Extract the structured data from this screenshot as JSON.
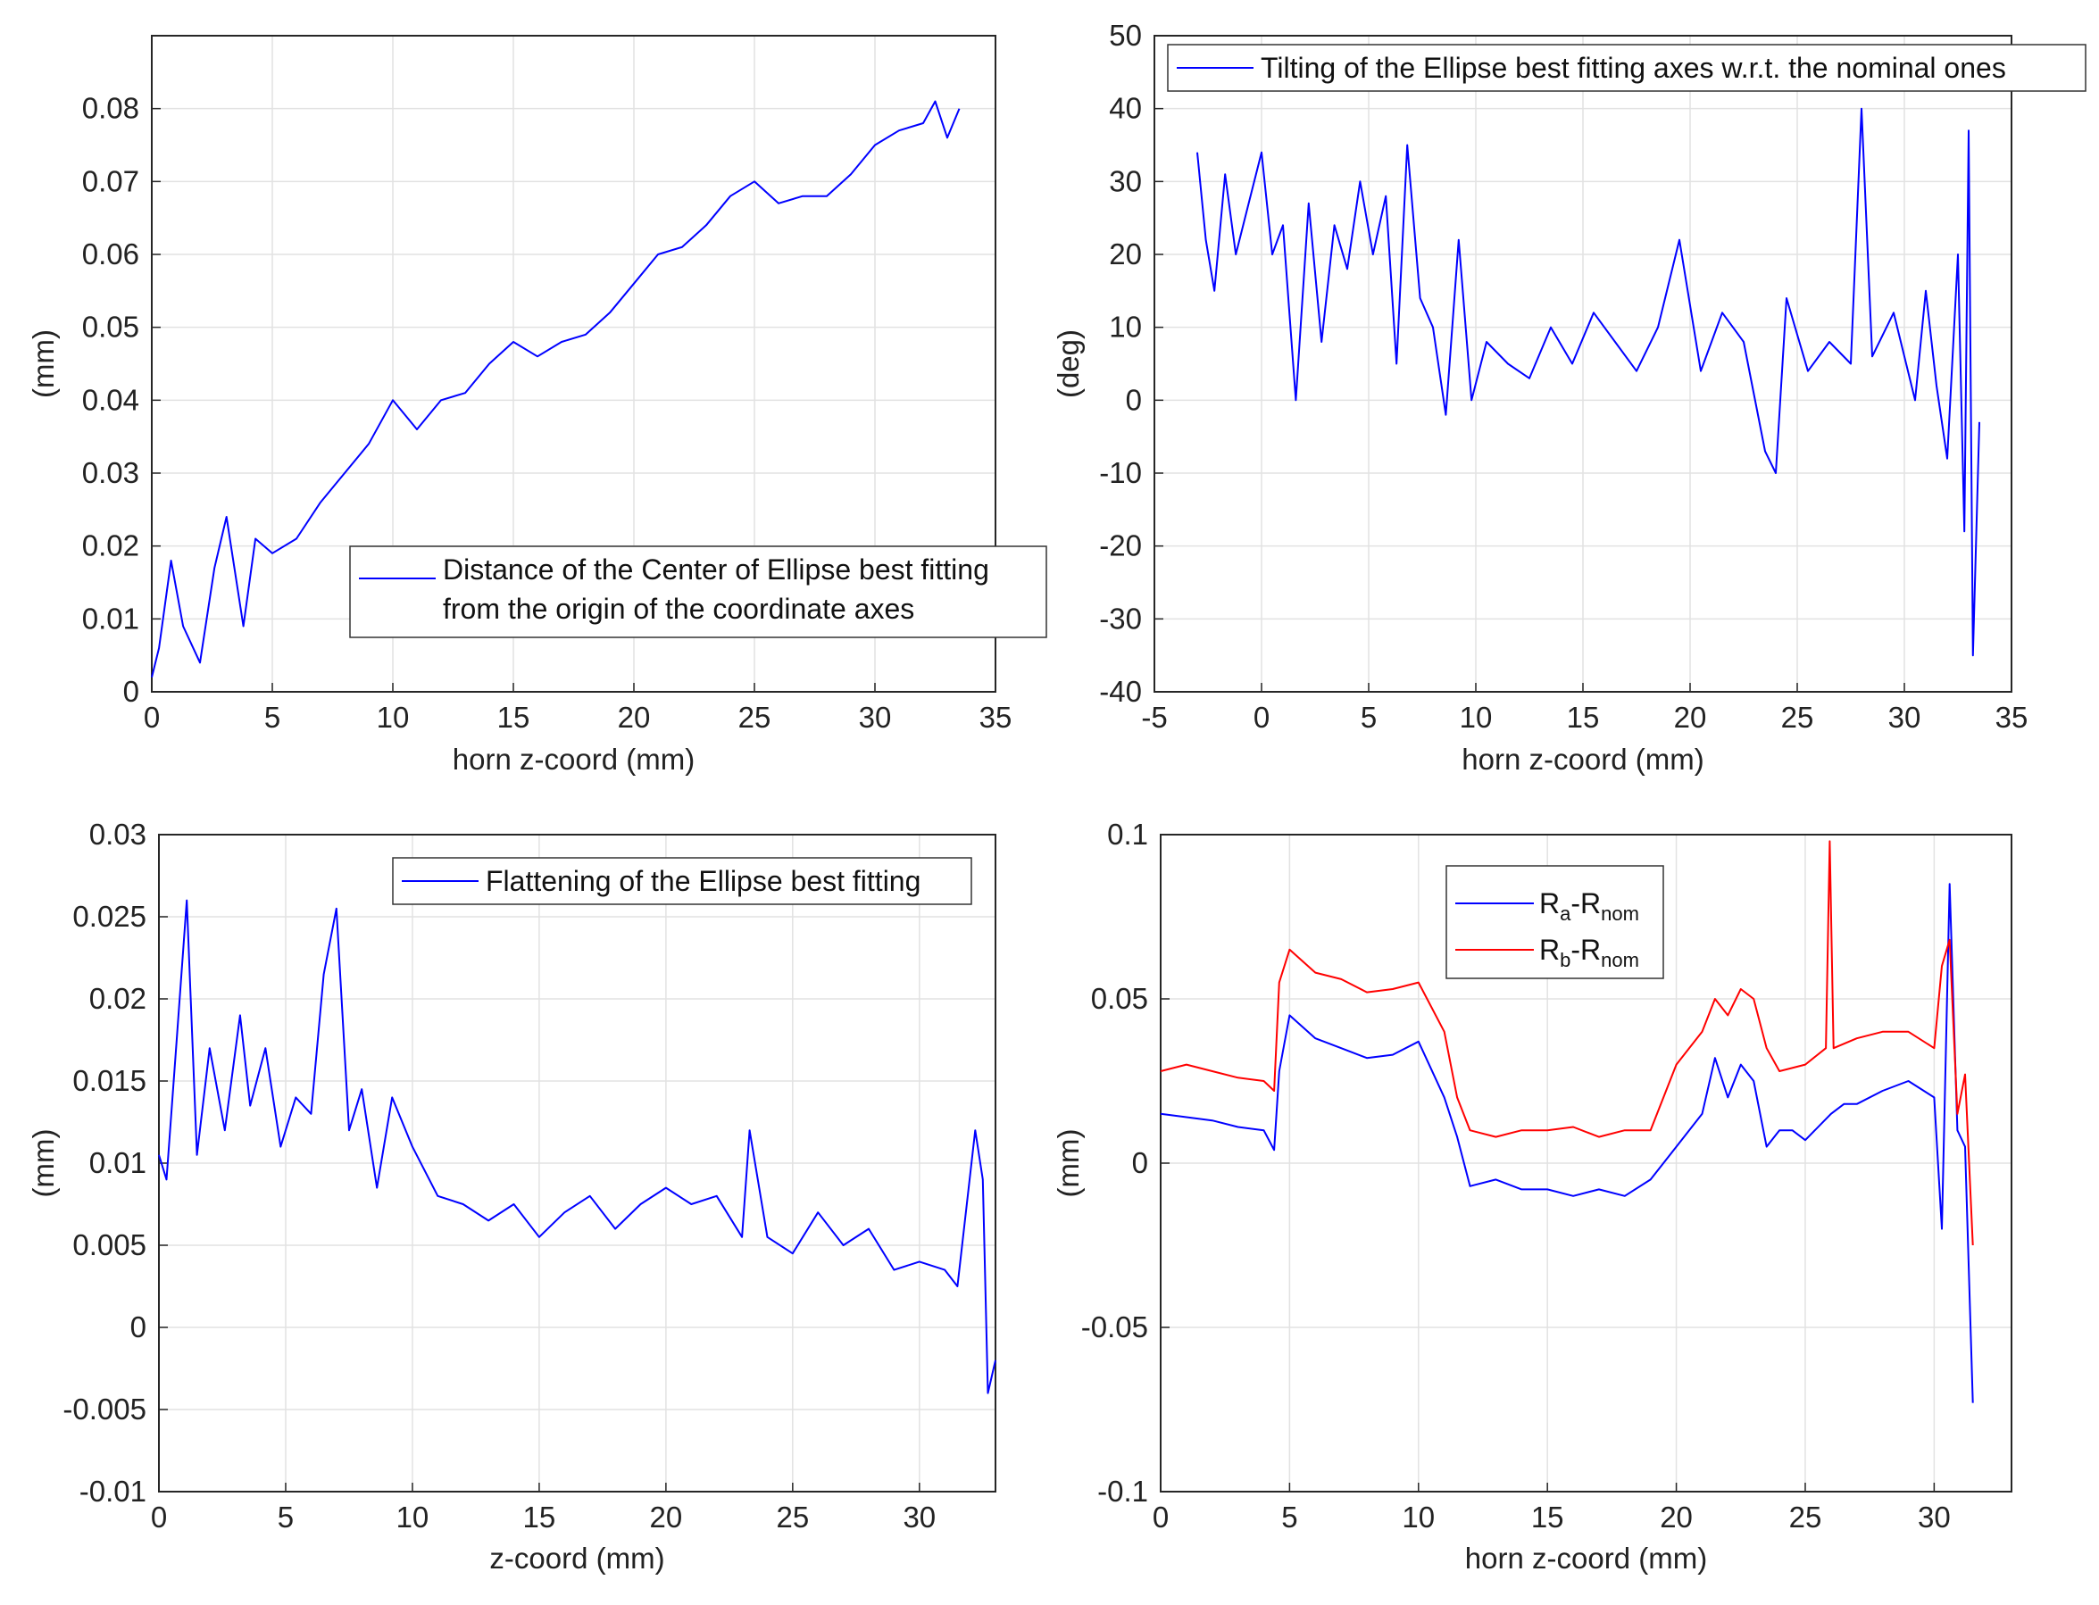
{
  "colors": {
    "blue": "#0000ff",
    "red": "#ff0000",
    "grid": "#e2e2e2",
    "axis": "#262626"
  },
  "chart_data": [
    {
      "type": "line",
      "xlabel": "horn z-coord (mm)",
      "ylabel": "(mm)",
      "xlim": [
        0,
        35
      ],
      "ylim": [
        0,
        0.09
      ],
      "xticks": [
        "0",
        "5",
        "10",
        "15",
        "20",
        "25",
        "30",
        "35"
      ],
      "yticks": [
        "0",
        "0.01",
        "0.02",
        "0.03",
        "0.04",
        "0.05",
        "0.06",
        "0.07",
        "0.08"
      ],
      "legend": {
        "entries": [
          "Distance of the Center of Ellipse best fitting",
          "from the origin of the coordinate axes"
        ],
        "location": "lower-right"
      },
      "series": [
        {
          "name": "Distance of the Center of Ellipse best fitting from the origin of the coordinate axes",
          "color": "blue",
          "x": [
            0,
            0.3,
            0.8,
            1.3,
            2.0,
            2.6,
            3.1,
            3.8,
            4.3,
            5.0,
            6.0,
            7.0,
            8.0,
            9.0,
            10.0,
            11.0,
            12.0,
            13.0,
            14.0,
            15.0,
            16.0,
            17.0,
            18.0,
            19.0,
            20.0,
            21.0,
            22.0,
            23.0,
            24.0,
            25.0,
            26.0,
            27.0,
            28.0,
            29.0,
            30.0,
            31.0,
            32.0,
            32.5,
            33.0,
            33.5
          ],
          "y": [
            0.002,
            0.006,
            0.018,
            0.009,
            0.004,
            0.017,
            0.024,
            0.009,
            0.021,
            0.019,
            0.021,
            0.026,
            0.03,
            0.034,
            0.04,
            0.036,
            0.04,
            0.041,
            0.045,
            0.048,
            0.046,
            0.048,
            0.049,
            0.052,
            0.056,
            0.06,
            0.061,
            0.064,
            0.068,
            0.07,
            0.067,
            0.068,
            0.068,
            0.071,
            0.075,
            0.077,
            0.078,
            0.081,
            0.076,
            0.08
          ]
        }
      ]
    },
    {
      "type": "line",
      "xlabel": "horn z-coord (mm)",
      "ylabel": "(deg)",
      "xlim": [
        -5,
        35
      ],
      "ylim": [
        -40,
        50
      ],
      "xticks": [
        "-5",
        "0",
        "5",
        "10",
        "15",
        "20",
        "25",
        "30",
        "35"
      ],
      "yticks": [
        "-40",
        "-30",
        "-20",
        "-10",
        "0",
        "10",
        "20",
        "30",
        "40",
        "50"
      ],
      "legend": {
        "entries": [
          "Tilting of the Ellipse best fitting axes w.r.t. the nominal ones"
        ],
        "location": "top"
      },
      "series": [
        {
          "name": "Tilting of the Ellipse best fitting axes w.r.t. the nominal ones",
          "color": "blue",
          "x": [
            -3.0,
            -2.6,
            -2.2,
            -1.7,
            -1.2,
            -0.6,
            0.0,
            0.5,
            1.0,
            1.6,
            2.2,
            2.8,
            3.4,
            4.0,
            4.6,
            5.2,
            5.8,
            6.3,
            6.8,
            7.4,
            8.0,
            8.6,
            9.2,
            9.8,
            10.5,
            11.5,
            12.5,
            13.5,
            14.5,
            15.5,
            16.5,
            17.5,
            18.5,
            19.5,
            20.5,
            21.5,
            22.5,
            23.5,
            24.0,
            24.5,
            25.5,
            26.5,
            27.5,
            28.0,
            28.5,
            29.5,
            30.5,
            31.0,
            31.5,
            32.0,
            32.5,
            32.8,
            33.0,
            33.2,
            33.5
          ],
          "y": [
            34,
            22,
            15,
            31,
            20,
            27,
            34,
            20,
            24,
            0,
            27,
            8,
            24,
            18,
            30,
            20,
            28,
            5,
            35,
            14,
            10,
            -2,
            22,
            0,
            8,
            5,
            3,
            10,
            5,
            12,
            8,
            4,
            10,
            22,
            4,
            12,
            8,
            -7,
            -10,
            14,
            4,
            8,
            5,
            40,
            6,
            12,
            0,
            15,
            2,
            -8,
            20,
            -18,
            37,
            -35,
            -3
          ]
        }
      ]
    },
    {
      "type": "line",
      "xlabel": "z-coord  (mm)",
      "ylabel": "(mm)",
      "xlim": [
        0,
        33
      ],
      "ylim": [
        -0.01,
        0.03
      ],
      "xticks": [
        "0",
        "5",
        "10",
        "15",
        "20",
        "25",
        "30"
      ],
      "yticks": [
        "-0.01",
        "-0.005",
        "0",
        "0.005",
        "0.01",
        "0.015",
        "0.02",
        "0.025",
        "0.03"
      ],
      "legend": {
        "entries": [
          "Flattening of the Ellipse best fitting"
        ],
        "location": "top-right"
      },
      "series": [
        {
          "name": "Flattening of the Ellipse best fitting",
          "color": "blue",
          "x": [
            0,
            0.3,
            0.7,
            1.1,
            1.5,
            2.0,
            2.6,
            3.2,
            3.6,
            4.2,
            4.8,
            5.4,
            6.0,
            6.5,
            7.0,
            7.5,
            8.0,
            8.6,
            9.2,
            10.0,
            11.0,
            12.0,
            13.0,
            14.0,
            15.0,
            16.0,
            17.0,
            18.0,
            19.0,
            20.0,
            21.0,
            22.0,
            23.0,
            23.3,
            24.0,
            25.0,
            26.0,
            27.0,
            28.0,
            29.0,
            30.0,
            31.0,
            31.5,
            32.2,
            32.5,
            32.7,
            33.0
          ],
          "y": [
            0.0105,
            0.009,
            0.0175,
            0.026,
            0.0105,
            0.017,
            0.012,
            0.019,
            0.0135,
            0.017,
            0.011,
            0.014,
            0.013,
            0.0215,
            0.0255,
            0.012,
            0.0145,
            0.0085,
            0.014,
            0.011,
            0.008,
            0.0075,
            0.0065,
            0.0075,
            0.0055,
            0.007,
            0.008,
            0.006,
            0.0075,
            0.0085,
            0.0075,
            0.008,
            0.0055,
            0.012,
            0.0055,
            0.0045,
            0.007,
            0.005,
            0.006,
            0.0035,
            0.004,
            0.0035,
            0.0025,
            0.012,
            0.009,
            -0.004,
            -0.002
          ]
        }
      ]
    },
    {
      "type": "line",
      "xlabel": "horn z-coord (mm)",
      "ylabel": "(mm)",
      "xlim": [
        0,
        33
      ],
      "ylim": [
        -0.1,
        0.1
      ],
      "xticks": [
        "0",
        "5",
        "10",
        "15",
        "20",
        "25",
        "30"
      ],
      "yticks": [
        "-0.1",
        "-0.05",
        "0",
        "0.05",
        "0.1"
      ],
      "legend": {
        "entries": [
          "Ra-Rnom",
          "Rb-Rnom"
        ],
        "location": "top-center"
      },
      "series": [
        {
          "name": "Ra-Rnom",
          "color": "blue",
          "x": [
            0,
            1.0,
            2.0,
            3.0,
            4.0,
            4.4,
            4.6,
            5.0,
            6.0,
            7.0,
            8.0,
            9.0,
            10.0,
            11.0,
            11.5,
            12.0,
            13.0,
            14.0,
            15.0,
            16.0,
            17.0,
            18.0,
            19.0,
            20.0,
            21.0,
            21.5,
            22.0,
            22.5,
            23.0,
            23.5,
            24.0,
            24.5,
            25.0,
            26.0,
            26.5,
            27.0,
            28.0,
            29.0,
            30.0,
            30.3,
            30.6,
            30.9,
            31.2,
            31.5
          ],
          "y": [
            0.015,
            0.014,
            0.013,
            0.011,
            0.01,
            0.004,
            0.028,
            0.045,
            0.038,
            0.035,
            0.032,
            0.033,
            0.037,
            0.02,
            0.008,
            -0.007,
            -0.005,
            -0.008,
            -0.008,
            -0.01,
            -0.008,
            -0.01,
            -0.005,
            0.005,
            0.015,
            0.032,
            0.02,
            0.03,
            0.025,
            0.005,
            0.01,
            0.01,
            0.007,
            0.015,
            0.018,
            0.018,
            0.022,
            0.025,
            0.02,
            -0.02,
            0.085,
            0.01,
            0.005,
            -0.073
          ]
        },
        {
          "name": "Rb-Rnom",
          "color": "red",
          "x": [
            0,
            1.0,
            2.0,
            3.0,
            4.0,
            4.4,
            4.6,
            5.0,
            6.0,
            7.0,
            8.0,
            9.0,
            10.0,
            11.0,
            11.5,
            12.0,
            13.0,
            14.0,
            15.0,
            16.0,
            17.0,
            18.0,
            19.0,
            20.0,
            21.0,
            21.5,
            22.0,
            22.5,
            23.0,
            23.5,
            24.0,
            25.0,
            25.8,
            25.95,
            26.1,
            27.0,
            28.0,
            29.0,
            30.0,
            30.3,
            30.6,
            30.9,
            31.2,
            31.5
          ],
          "y": [
            0.028,
            0.03,
            0.028,
            0.026,
            0.025,
            0.022,
            0.055,
            0.065,
            0.058,
            0.056,
            0.052,
            0.053,
            0.055,
            0.04,
            0.02,
            0.01,
            0.008,
            0.01,
            0.01,
            0.011,
            0.008,
            0.01,
            0.01,
            0.03,
            0.04,
            0.05,
            0.045,
            0.053,
            0.05,
            0.035,
            0.028,
            0.03,
            0.035,
            0.098,
            0.035,
            0.038,
            0.04,
            0.04,
            0.035,
            0.06,
            0.068,
            0.015,
            0.027,
            -0.025
          ]
        }
      ]
    }
  ]
}
